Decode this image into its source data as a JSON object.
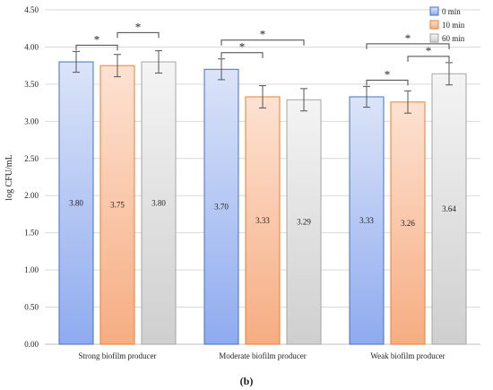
{
  "chart_data": {
    "type": "bar",
    "ylabel": "log CFU/mL",
    "ylim": [
      0,
      4.5
    ],
    "yticks": [
      "0.00",
      "0.50",
      "1.00",
      "1.50",
      "2.00",
      "2.50",
      "3.00",
      "3.50",
      "4.00",
      "4.50"
    ],
    "grid": true,
    "legend_position": "top-right",
    "categories": [
      "Strong biofilm producer",
      "Moderate biofilm producer",
      "Weak biofilm producer"
    ],
    "series": [
      {
        "name": "0 min",
        "values": [
          3.8,
          3.7,
          3.33
        ],
        "labels": [
          "3.80",
          "3.70",
          "3.33"
        ],
        "errors": [
          0.14,
          0.14,
          0.14
        ],
        "colors": {
          "top": "#dbe4f8",
          "bottom": "#8fabef",
          "stroke": "#4472c4"
        }
      },
      {
        "name": "10 min",
        "values": [
          3.75,
          3.33,
          3.26
        ],
        "labels": [
          "3.75",
          "3.33",
          "3.26"
        ],
        "errors": [
          0.15,
          0.15,
          0.15
        ],
        "colors": {
          "top": "#fde2d2",
          "bottom": "#f6ad82",
          "stroke": "#ed7d31"
        }
      },
      {
        "name": "60 min",
        "values": [
          3.8,
          3.29,
          3.64
        ],
        "labels": [
          "3.80",
          "3.29",
          "3.64"
        ],
        "errors": [
          0.15,
          0.15,
          0.15
        ],
        "colors": {
          "top": "#f4f4f4",
          "bottom": "#cfcfcf",
          "stroke": "#a5a5a5"
        }
      }
    ],
    "significance": [
      {
        "category": 0,
        "from": 0,
        "to": 1,
        "label": "*"
      },
      {
        "category": 0,
        "from": 1,
        "to": 2,
        "label": "*"
      },
      {
        "category": 1,
        "from": 0,
        "to": 1,
        "label": "*"
      },
      {
        "category": 1,
        "from": 0,
        "to": 2,
        "label": "*"
      },
      {
        "category": 2,
        "from": 0,
        "to": 1,
        "label": "*"
      },
      {
        "category": 2,
        "from": 1,
        "to": 2,
        "label": "*"
      },
      {
        "category": 2,
        "from": 0,
        "to": 2,
        "label": "*"
      }
    ],
    "caption": "(b)"
  }
}
